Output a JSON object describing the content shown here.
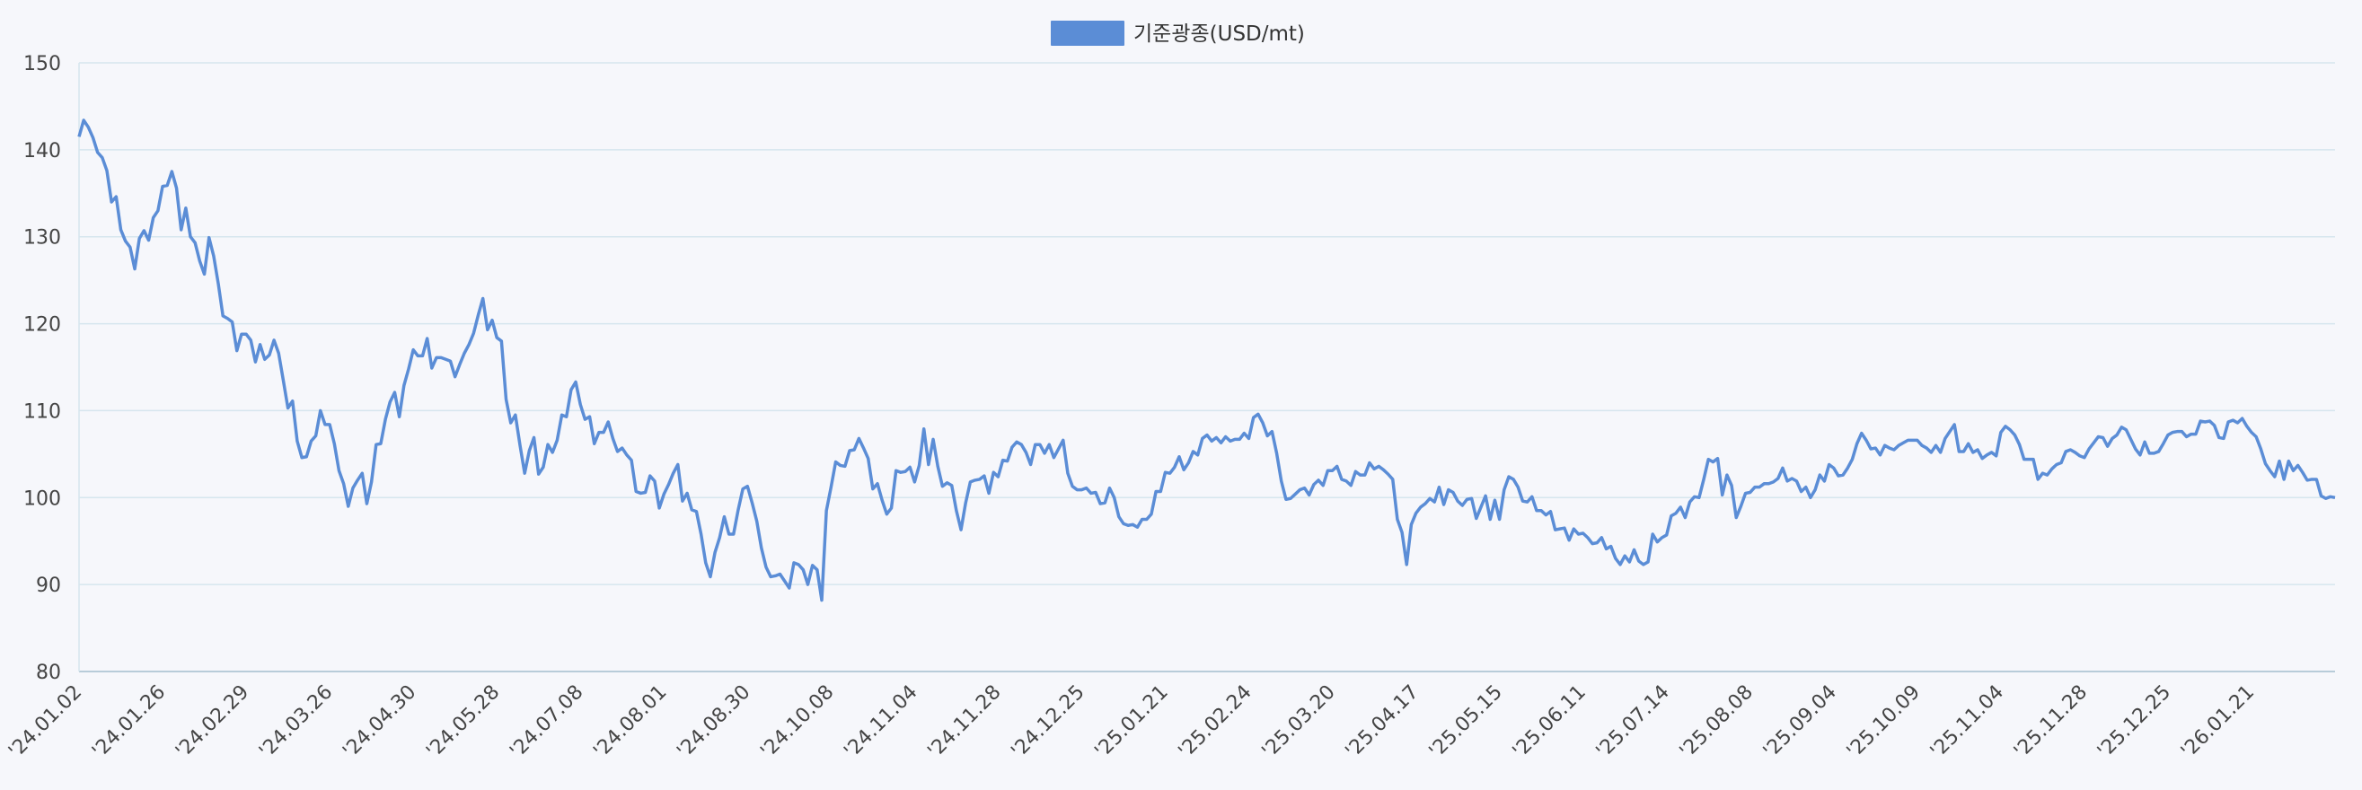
{
  "chart_data": {
    "type": "line",
    "title": "",
    "xlabel": "",
    "ylabel": "",
    "ylim": [
      80,
      150
    ],
    "y_ticks": [
      80,
      90,
      100,
      110,
      120,
      130,
      140,
      150
    ],
    "grid": true,
    "legend_position": "top-center",
    "series": [
      {
        "name": "기준광종(USD/mt)",
        "color": "#5b8dd6",
        "values": [
          141.5,
          143.4,
          142.6,
          141.4,
          139.7,
          139.1,
          137.6,
          134.0,
          134.6,
          130.8,
          129.5,
          128.8,
          126.3,
          129.8,
          130.7,
          129.6,
          132.2,
          133.0,
          135.8,
          135.9,
          137.5,
          135.6,
          130.8,
          133.3,
          130.0,
          129.3,
          127.2,
          125.7,
          129.9,
          127.8,
          124.6,
          120.9,
          120.6,
          120.2,
          116.9,
          118.8,
          118.8,
          118.1,
          115.6,
          117.6,
          115.9,
          116.4,
          118.1,
          116.6,
          113.5,
          110.3,
          111.1,
          106.5,
          104.6,
          104.7,
          106.5,
          107.1,
          110.0,
          108.4,
          108.4,
          106.2,
          103.1,
          101.6,
          99.0,
          101.1,
          102.0,
          102.8,
          99.3,
          101.8,
          106.1,
          106.2,
          109.0,
          111.0,
          112.1,
          109.3,
          112.9,
          114.8,
          117.0,
          116.3,
          116.3,
          118.3,
          114.9,
          116.1,
          116.1,
          115.9,
          115.7,
          113.9,
          115.3,
          116.6,
          117.6,
          118.9,
          121.0,
          122.9,
          119.3,
          120.4,
          118.4,
          118.0,
          111.3,
          108.6,
          109.5,
          106.0,
          102.8,
          105.4,
          106.9,
          102.7,
          103.5,
          106.1,
          105.2,
          106.6,
          109.5,
          109.3,
          112.4,
          113.3,
          110.7,
          109.0,
          109.3,
          106.2,
          107.5,
          107.5,
          108.7,
          106.8,
          105.3,
          105.7,
          104.9,
          104.3,
          100.7,
          100.5,
          100.6,
          102.5,
          101.9,
          98.8,
          100.4,
          101.5,
          102.8,
          103.8,
          99.6,
          100.5,
          98.6,
          98.4,
          95.8,
          92.5,
          90.9,
          93.7,
          95.4,
          97.8,
          95.8,
          95.8,
          98.6,
          101.0,
          101.3,
          99.4,
          97.3,
          94.2,
          92.0,
          90.9,
          91.0,
          91.2,
          90.4,
          89.6,
          92.5,
          92.3,
          91.7,
          90.0,
          92.2,
          91.7,
          88.2,
          98.5,
          101.2,
          104.1,
          103.7,
          103.6,
          105.4,
          105.5,
          106.8,
          105.7,
          104.5,
          101.0,
          101.6,
          99.7,
          98.1,
          98.8,
          103.1,
          102.9,
          103.0,
          103.5,
          101.8,
          103.7,
          107.9,
          103.8,
          106.7,
          103.6,
          101.3,
          101.7,
          101.4,
          98.5,
          96.3,
          99.4,
          101.8,
          102.0,
          102.1,
          102.5,
          100.5,
          102.9,
          102.4,
          104.3,
          104.2,
          105.8,
          106.4,
          106.1,
          105.2,
          103.8,
          106.1,
          106.1,
          105.1,
          106.1,
          104.6,
          105.6,
          106.6,
          102.8,
          101.3,
          100.9,
          100.9,
          101.1,
          100.5,
          100.6,
          99.3,
          99.4,
          101.1,
          100.0,
          97.8,
          97.0,
          96.8,
          96.9,
          96.6,
          97.5,
          97.5,
          98.1,
          100.7,
          100.7,
          102.9,
          102.8,
          103.5,
          104.7,
          103.2,
          104.0,
          105.3,
          104.9,
          106.8,
          107.2,
          106.5,
          106.9,
          106.3,
          107.0,
          106.5,
          106.7,
          106.7,
          107.4,
          106.8,
          109.2,
          109.6,
          108.6,
          107.1,
          107.6,
          105.1,
          101.9,
          99.8,
          99.9,
          100.4,
          100.9,
          101.1,
          100.3,
          101.5,
          102.0,
          101.4,
          103.1,
          103.1,
          103.6,
          102.1,
          101.9,
          101.4,
          103.0,
          102.6,
          102.6,
          104.0,
          103.3,
          103.6,
          103.2,
          102.7,
          102.1,
          97.5,
          96.0,
          92.3,
          96.9,
          98.2,
          98.9,
          99.3,
          99.9,
          99.5,
          101.2,
          99.2,
          100.9,
          100.6,
          99.6,
          99.1,
          99.8,
          99.9,
          97.6,
          98.9,
          100.2,
          97.5,
          99.7,
          97.5,
          100.9,
          102.4,
          102.1,
          101.2,
          99.6,
          99.5,
          100.1,
          98.5,
          98.5,
          98.0,
          98.4,
          96.3,
          96.4,
          96.5,
          95.1,
          96.4,
          95.8,
          95.9,
          95.4,
          94.7,
          94.8,
          95.4,
          94.1,
          94.4,
          93.0,
          92.3,
          93.3,
          92.6,
          94.0,
          92.7,
          92.3,
          92.6,
          95.8,
          94.9,
          95.4,
          95.7,
          97.9,
          98.2,
          98.9,
          97.7,
          99.5,
          100.1,
          100.0,
          102.1,
          104.4,
          104.1,
          104.5,
          100.3,
          102.6,
          101.4,
          97.7,
          99.0,
          100.5,
          100.6,
          101.2,
          101.2,
          101.6,
          101.6,
          101.8,
          102.2,
          103.4,
          101.9,
          102.2,
          101.9,
          100.7,
          101.2,
          100.0,
          100.9,
          102.6,
          101.9,
          103.8,
          103.4,
          102.5,
          102.6,
          103.4,
          104.4,
          106.2,
          107.4,
          106.6,
          105.6,
          105.7,
          104.9,
          106.0,
          105.7,
          105.5,
          106.0,
          106.3,
          106.6,
          106.6,
          106.6,
          106.0,
          105.7,
          105.2,
          106.0,
          105.2,
          106.8,
          107.6,
          108.4,
          105.3,
          105.3,
          106.2,
          105.2,
          105.5,
          104.5,
          104.9,
          105.2,
          104.8,
          107.5,
          108.2,
          107.8,
          107.2,
          106.1,
          104.4,
          104.4,
          104.4,
          102.1,
          102.8,
          102.6,
          103.3,
          103.8,
          104.0,
          105.3,
          105.5,
          105.2,
          104.8,
          104.6,
          105.6,
          106.3,
          107.0,
          106.9,
          105.9,
          106.8,
          107.2,
          108.1,
          107.8,
          106.7,
          105.6,
          104.9,
          106.4,
          105.1,
          105.1,
          105.3,
          106.2,
          107.2,
          107.5,
          107.6,
          107.6,
          107.0,
          107.3,
          107.3,
          108.8,
          108.7,
          108.8,
          108.3,
          106.9,
          106.8,
          108.7,
          108.9,
          108.6,
          109.1,
          108.2,
          107.5,
          107.0,
          105.6,
          103.9,
          103.1,
          102.4,
          104.2,
          102.1,
          104.2,
          103.1,
          103.7,
          102.9,
          102.0,
          102.1,
          102.1,
          100.2,
          99.9,
          100.1,
          100.0
        ]
      }
    ],
    "x_tick_labels": [
      "'24.01.02",
      "'24.01.26",
      "'24.02.29",
      "'24.03.26",
      "'24.04.30",
      "'24.05.28",
      "'24.07.08",
      "'24.08.01",
      "'24.08.30",
      "'24.10.08",
      "'24.11.04",
      "'24.11.28",
      "'24.12.25",
      "'25.01.21",
      "'25.02.24",
      "'25.03.20",
      "'25.04.17",
      "'25.05.15",
      "'25.06.11",
      "'25.07.14",
      "'25.08.08",
      "'25.09.04",
      "'25.10.09",
      "'25.11.04",
      "'25.11.28",
      "'25.12.25",
      "'26.01.21"
    ]
  }
}
